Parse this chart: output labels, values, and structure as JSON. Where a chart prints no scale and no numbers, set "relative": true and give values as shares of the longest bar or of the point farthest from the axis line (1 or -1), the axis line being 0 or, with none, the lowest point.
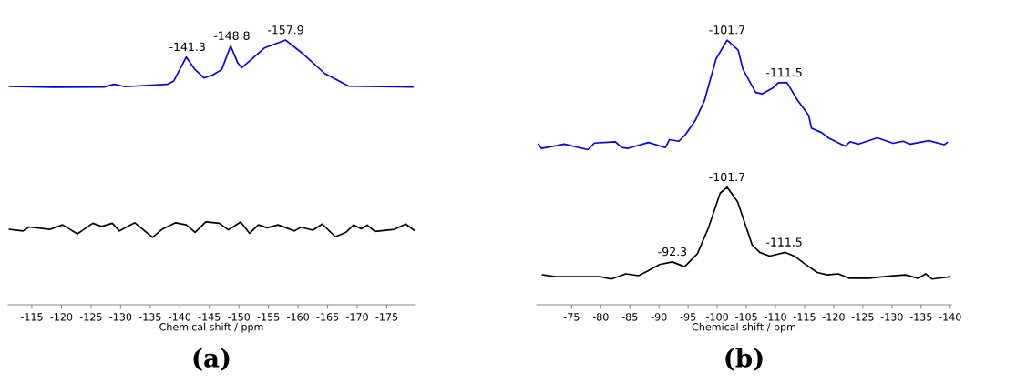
{
  "chart_data": [
    {
      "type": "line",
      "title": "(a)",
      "xlabel": "Chemical shift / ppm",
      "relative": true,
      "xlim": [
        -111.0,
        -179.7
      ],
      "xticks": [
        -115,
        -120,
        -125,
        -130,
        -135,
        -140,
        -145,
        -150,
        -155,
        -160,
        -165,
        -170,
        -175
      ],
      "legend": false,
      "marker": "none",
      "line_style": "solid",
      "grid": false,
      "annotations": [
        {
          "text": "-141.3",
          "x": -141.3,
          "y": 0.936
        },
        {
          "text": "-148.8",
          "x": -148.8,
          "y": 0.978
        },
        {
          "text": "-157.9",
          "x": -157.9,
          "y": 1.0
        }
      ],
      "series": [
        {
          "color": "#0000ff",
          "x": [
            -111.2,
            -118.6,
            -127.2,
            -128.9,
            -130.8,
            -137.9,
            -139.0,
            -141.1,
            -142.5,
            -144.1,
            -145.6,
            -147.1,
            -148.6,
            -149.8,
            -150.5,
            -154.3,
            -157.9,
            -160.9,
            -164.5,
            -168.6,
            -179.4
          ],
          "values": [
            0.825,
            0.822,
            0.823,
            0.833,
            0.824,
            0.833,
            0.846,
            0.936,
            0.891,
            0.857,
            0.869,
            0.889,
            0.978,
            0.914,
            0.896,
            0.97,
            1.0,
            0.947,
            0.874,
            0.826,
            0.823
          ]
        },
        {
          "color": "#000000",
          "x": [
            -111.2,
            -113.5,
            -114.5,
            -118.1,
            -120.2,
            -122.7,
            -125.3,
            -126.8,
            -128.6,
            -129.8,
            -132.4,
            -135.4,
            -137.0,
            -139.3,
            -141.1,
            -142.6,
            -144.4,
            -146.7,
            -148.2,
            -150.3,
            -151.8,
            -153.3,
            -154.8,
            -156.6,
            -159.4,
            -160.5,
            -162.5,
            -164.1,
            -166.3,
            -168.1,
            -169.4,
            -170.7,
            -171.7,
            -173.0,
            -176.3,
            -178.2,
            -179.6
          ],
          "values": [
            0.285,
            0.279,
            0.294,
            0.285,
            0.302,
            0.268,
            0.308,
            0.296,
            0.308,
            0.279,
            0.31,
            0.255,
            0.285,
            0.31,
            0.302,
            0.274,
            0.313,
            0.308,
            0.283,
            0.313,
            0.27,
            0.302,
            0.291,
            0.302,
            0.279,
            0.293,
            0.282,
            0.305,
            0.257,
            0.274,
            0.302,
            0.287,
            0.301,
            0.277,
            0.285,
            0.305,
            0.282
          ]
        }
      ]
    },
    {
      "type": "line",
      "title": "(b)",
      "xlabel": "Chemical shift / ppm",
      "relative": true,
      "xlim": [
        -69.0,
        -140.2
      ],
      "xticks": [
        -75,
        -80,
        -85,
        -90,
        -95,
        -100,
        -105,
        -110,
        -115,
        -120,
        -125,
        -130,
        -135,
        -140
      ],
      "legend": false,
      "marker": "none",
      "line_style": "solid",
      "grid": false,
      "annotations": [
        {
          "text": "-101.7",
          "x": -101.7,
          "y": 1.0
        },
        {
          "text": "-111.5",
          "x": -111.5,
          "y": 0.839
        },
        {
          "text": "-101.7",
          "x": -101.7,
          "y": 0.444
        },
        {
          "text": "-92.3",
          "x": -92.3,
          "y": 0.162
        },
        {
          "text": "-111.5",
          "x": -111.5,
          "y": 0.198
        }
      ],
      "series": [
        {
          "color": "#0000ff",
          "x": [
            -69.3,
            -69.8,
            -72.6,
            -73.7,
            -77.8,
            -78.9,
            -82.5,
            -83.6,
            -84.7,
            -88.2,
            -91.1,
            -91.8,
            -93.4,
            -94.5,
            -96.2,
            -97.8,
            -99.8,
            -101.7,
            -103.6,
            -104.4,
            -106.6,
            -107.7,
            -109.6,
            -110.5,
            -112.0,
            -113.7,
            -115.7,
            -116.2,
            -117.9,
            -119.2,
            -122.0,
            -122.8,
            -124.2,
            -127.5,
            -130.2,
            -131.9,
            -133.2,
            -136.3,
            -139.0,
            -139.5
          ],
          "values": [
            0.607,
            0.591,
            0.602,
            0.607,
            0.586,
            0.611,
            0.616,
            0.594,
            0.591,
            0.613,
            0.594,
            0.624,
            0.618,
            0.642,
            0.695,
            0.771,
            0.929,
            1.0,
            0.962,
            0.891,
            0.802,
            0.797,
            0.82,
            0.839,
            0.839,
            0.776,
            0.716,
            0.667,
            0.651,
            0.629,
            0.599,
            0.616,
            0.607,
            0.631,
            0.61,
            0.618,
            0.607,
            0.62,
            0.605,
            0.613
          ]
        },
        {
          "color": "#000000",
          "x": [
            -70.0,
            -72.2,
            -76.6,
            -79.9,
            -81.8,
            -84.3,
            -86.5,
            -88.1,
            -90.1,
            -92.3,
            -94.4,
            -96.6,
            -98.5,
            -100.5,
            -101.7,
            -103.5,
            -106.0,
            -107.3,
            -109.0,
            -111.7,
            -113.4,
            -115.0,
            -117.2,
            -118.9,
            -120.8,
            -122.7,
            -126.0,
            -129.3,
            -132.3,
            -134.5,
            -135.8,
            -136.9,
            -140.0
          ],
          "values": [
            0.113,
            0.106,
            0.106,
            0.106,
            0.097,
            0.117,
            0.11,
            0.128,
            0.152,
            0.162,
            0.144,
            0.193,
            0.291,
            0.422,
            0.444,
            0.389,
            0.226,
            0.198,
            0.184,
            0.198,
            0.182,
            0.155,
            0.122,
            0.113,
            0.117,
            0.1,
            0.1,
            0.108,
            0.113,
            0.1,
            0.117,
            0.097,
            0.106
          ]
        }
      ]
    }
  ]
}
